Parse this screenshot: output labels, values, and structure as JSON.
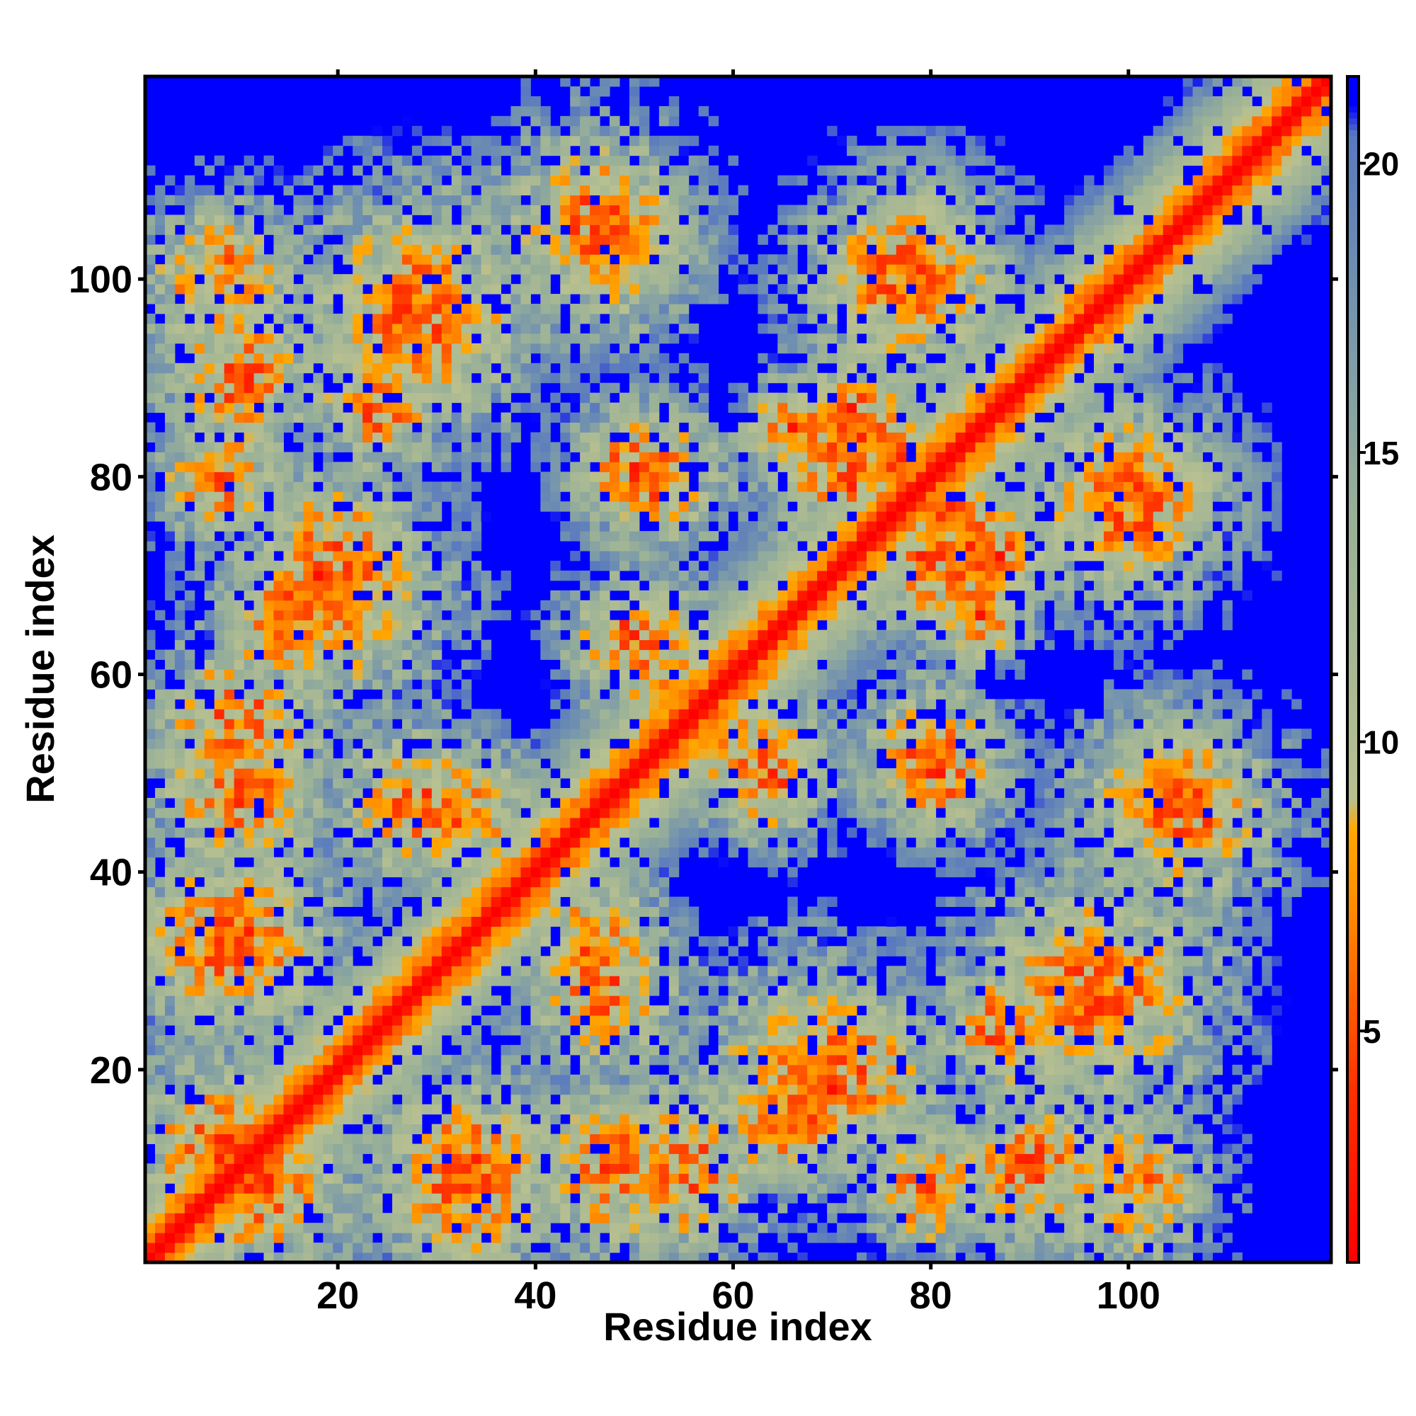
{
  "chart_data": {
    "type": "heatmap",
    "title": "",
    "xlabel": "Residue index",
    "ylabel": "Residue index",
    "n_residues": 120,
    "xlim": [
      1,
      120
    ],
    "ylim": [
      1,
      120
    ],
    "x_ticks": [
      20,
      40,
      60,
      80,
      100
    ],
    "y_ticks": [
      20,
      40,
      60,
      80,
      100
    ],
    "colorbar": {
      "ticks": [
        5,
        10,
        15,
        20
      ],
      "range": [
        1,
        21.5
      ],
      "cutoff": 21,
      "stops": [
        {
          "value": 1,
          "color": "#ff0000"
        },
        {
          "value": 4,
          "color": "#ff3000"
        },
        {
          "value": 7,
          "color": "#ff8800"
        },
        {
          "value": 8.5,
          "color": "#ffa800"
        },
        {
          "value": 9,
          "color": "#b8c090"
        },
        {
          "value": 14,
          "color": "#98b098"
        },
        {
          "value": 18,
          "color": "#7090b0"
        },
        {
          "value": 20.5,
          "color": "#5878c0"
        },
        {
          "value": 21,
          "color": "#0000ff"
        }
      ],
      "beyond_cutoff_color": "#0000ff"
    },
    "diagonal_band": {
      "core_width": 1.2,
      "scale": 1.3
    },
    "contact_regions": [
      {
        "x": 12,
        "y": 8,
        "radius": 11,
        "strength": 0.55
      },
      {
        "x": 8,
        "y": 33,
        "radius": 10,
        "strength": 0.6
      },
      {
        "x": 10,
        "y": 48,
        "radius": 10,
        "strength": 0.55
      },
      {
        "x": 20,
        "y": 68,
        "radius": 11,
        "strength": 0.65
      },
      {
        "x": 10,
        "y": 90,
        "radius": 11,
        "strength": 0.45
      },
      {
        "x": 28,
        "y": 97,
        "radius": 12,
        "strength": 0.65
      },
      {
        "x": 46,
        "y": 106,
        "radius": 10,
        "strength": 0.6
      },
      {
        "x": 50,
        "y": 81,
        "radius": 8,
        "strength": 0.5
      },
      {
        "x": 52,
        "y": 62,
        "radius": 9,
        "strength": 0.5
      },
      {
        "x": 33,
        "y": 46,
        "radius": 8,
        "strength": 0.55
      },
      {
        "x": 47,
        "y": 28,
        "radius": 9,
        "strength": 0.55
      },
      {
        "x": 33,
        "y": 10,
        "radius": 11,
        "strength": 0.55
      },
      {
        "x": 55,
        "y": 10,
        "radius": 11,
        "strength": 0.5
      },
      {
        "x": 72,
        "y": 20,
        "radius": 10,
        "strength": 0.55
      },
      {
        "x": 77,
        "y": 100,
        "radius": 11,
        "strength": 0.55
      },
      {
        "x": 72,
        "y": 80,
        "radius": 8,
        "strength": 0.7
      },
      {
        "x": 84,
        "y": 72,
        "radius": 8,
        "strength": 0.7
      },
      {
        "x": 80,
        "y": 52,
        "radius": 9,
        "strength": 0.5
      },
      {
        "x": 64,
        "y": 49,
        "radius": 8,
        "strength": 0.45
      },
      {
        "x": 100,
        "y": 78,
        "radius": 12,
        "strength": 0.5
      },
      {
        "x": 103,
        "y": 48,
        "radius": 10,
        "strength": 0.5
      },
      {
        "x": 96,
        "y": 28,
        "radius": 11,
        "strength": 0.55
      },
      {
        "x": 87,
        "y": 24,
        "radius": 9,
        "strength": 0.45
      },
      {
        "x": 100,
        "y": 8,
        "radius": 12,
        "strength": 0.4
      },
      {
        "x": 80,
        "y": 8,
        "radius": 10,
        "strength": 0.4
      }
    ],
    "contact_arcs": [
      {
        "x": 64,
        "y": 14,
        "radius": 4,
        "strength": 0.9
      },
      {
        "x": 68,
        "y": 16,
        "radius": 3,
        "strength": 0.9
      },
      {
        "x": 72,
        "y": 84,
        "radius": 4,
        "strength": 0.9
      },
      {
        "x": 76,
        "y": 82,
        "radius": 4,
        "strength": 0.9
      },
      {
        "x": 85,
        "y": 66,
        "radius": 4,
        "strength": 0.9
      },
      {
        "x": 87,
        "y": 72,
        "radius": 4,
        "strength": 0.9
      },
      {
        "x": 15,
        "y": 67,
        "radius": 4,
        "strength": 0.9
      },
      {
        "x": 18,
        "y": 70,
        "radius": 3,
        "strength": 0.9
      }
    ]
  }
}
